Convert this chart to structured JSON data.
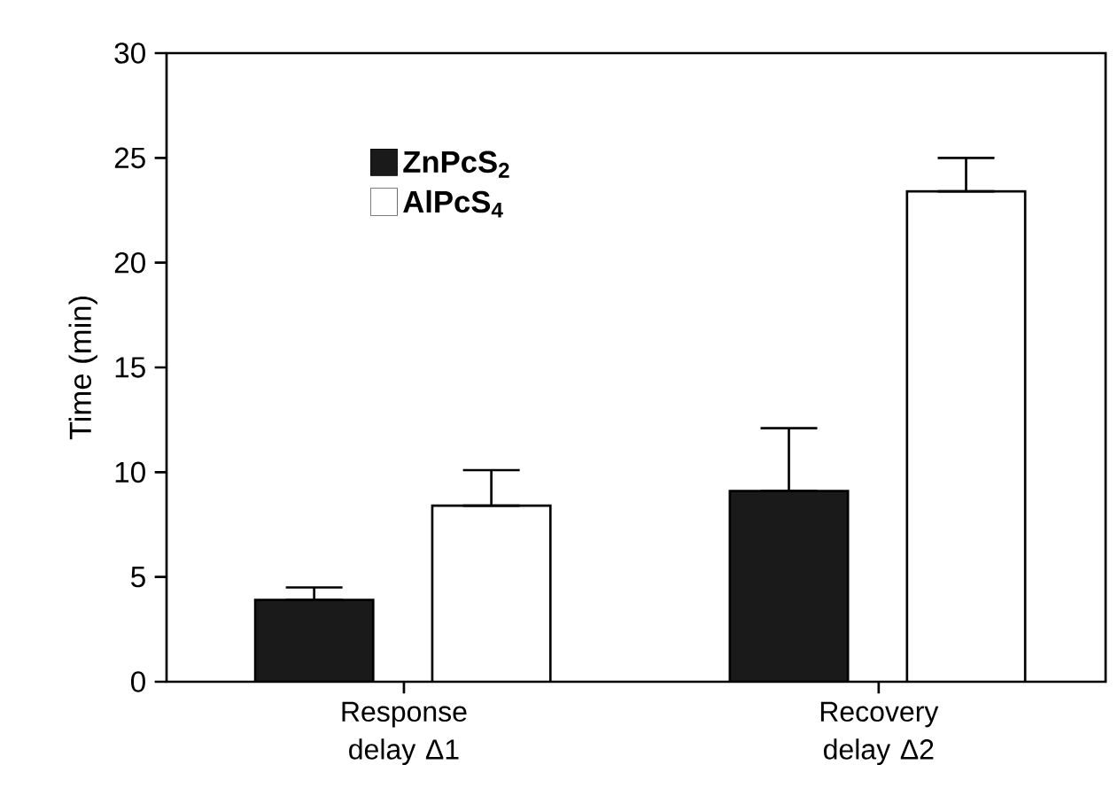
{
  "chart_data": {
    "type": "bar",
    "ylabel": "Time (min)",
    "categories": [
      "Response delay Δ1",
      "Recovery delay Δ2"
    ],
    "series": [
      {
        "name": "ZnPcS$_{2}$",
        "color": "#1a1a1a",
        "values": [
          3.9,
          9.1
        ],
        "errors": [
          [
            3.9,
            4.5
          ],
          [
            9.1,
            12.1
          ]
        ]
      },
      {
        "name": "AlPcS$_{4}$",
        "color": "#ffffff",
        "values": [
          8.4,
          23.4
        ],
        "errors": [
          [
            8.4,
            10.1
          ],
          [
            23.4,
            25.0
          ]
        ]
      }
    ],
    "ylim": [
      0,
      30
    ],
    "yticks": [
      0,
      5,
      10,
      15,
      20,
      25,
      30
    ],
    "grid": false,
    "legend": "top left"
  }
}
